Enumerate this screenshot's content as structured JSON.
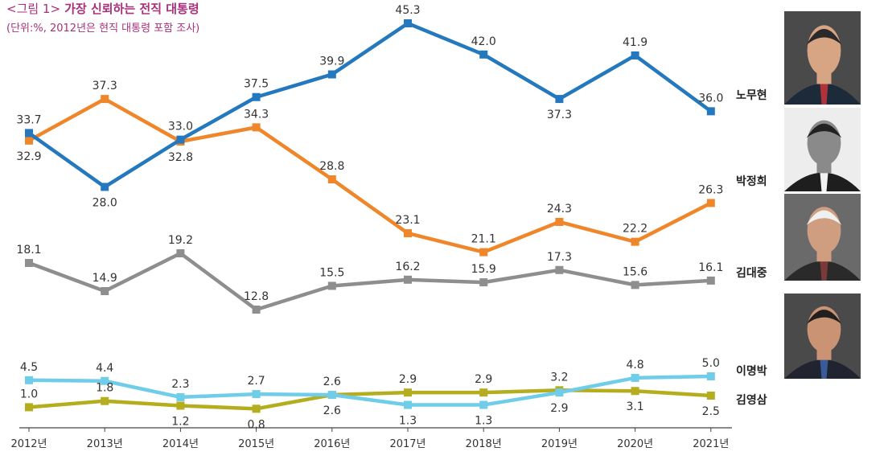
{
  "chart_data": {
    "type": "line",
    "title_prefix": "<그림 1>",
    "title": "가장 신뢰하는 전직 대통령",
    "subtitle": "(단위:%, 2012년은 현직 대통령 포함 조사)",
    "xlabel": "",
    "ylabel": "",
    "categories": [
      "2012년",
      "2013년",
      "2014년",
      "2015년",
      "2016년",
      "2017년",
      "2018년",
      "2019년",
      "2020년",
      "2021년"
    ],
    "series": [
      {
        "name": "노무현",
        "color": "#2478bd",
        "values": [
          33.7,
          28.0,
          33.0,
          37.5,
          39.9,
          45.3,
          42.0,
          37.3,
          41.9,
          36.0
        ],
        "labels": [
          "33.7",
          "28.0",
          "33.0",
          "37.5",
          "39.9",
          "45.3",
          "42.0",
          "37.3",
          "41.9",
          "36.0"
        ],
        "portrait_icon": "portrait-roh-icon"
      },
      {
        "name": "박정희",
        "color": "#f0862a",
        "values": [
          32.9,
          37.3,
          32.8,
          34.3,
          28.8,
          23.1,
          21.1,
          24.3,
          22.2,
          26.3
        ],
        "labels": [
          "32.9",
          "37.3",
          "32.8",
          "34.3",
          "28.8",
          "23.1",
          "21.1",
          "24.3",
          "22.2",
          "26.3"
        ],
        "portrait_icon": "portrait-park-icon"
      },
      {
        "name": "김대중",
        "color": "#8e8e8e",
        "values": [
          18.1,
          14.9,
          19.2,
          12.8,
          15.5,
          16.2,
          15.9,
          17.3,
          15.6,
          16.1
        ],
        "labels": [
          "18.1",
          "14.9",
          "19.2",
          "12.8",
          "15.5",
          "16.2",
          "15.9",
          "17.3",
          "15.6",
          "16.1"
        ],
        "portrait_icon": "portrait-kim-dj-icon"
      },
      {
        "name": "이명박",
        "color": "#6fcde9",
        "values": [
          4.5,
          4.4,
          2.3,
          2.7,
          2.6,
          1.3,
          1.3,
          2.9,
          4.8,
          5.0
        ],
        "labels": [
          "4.5",
          "4.4",
          "2.3",
          "2.7",
          "2.6",
          "1.3",
          "1.3",
          "2.9",
          "4.8",
          "5.0"
        ],
        "portrait_icon": "portrait-lee-icon"
      },
      {
        "name": "김영삼",
        "color": "#b4ad1e",
        "values": [
          1.0,
          1.8,
          1.2,
          0.8,
          2.6,
          2.9,
          2.9,
          3.2,
          3.1,
          2.5
        ],
        "labels": [
          "1.0",
          "1.8",
          "1.2",
          "0.8",
          "2.6",
          "2.9",
          "2.9",
          "3.2",
          "3.1",
          "2.5"
        ],
        "portrait_icon": null
      }
    ],
    "grid": false,
    "legend": "right, names beside line ends"
  }
}
